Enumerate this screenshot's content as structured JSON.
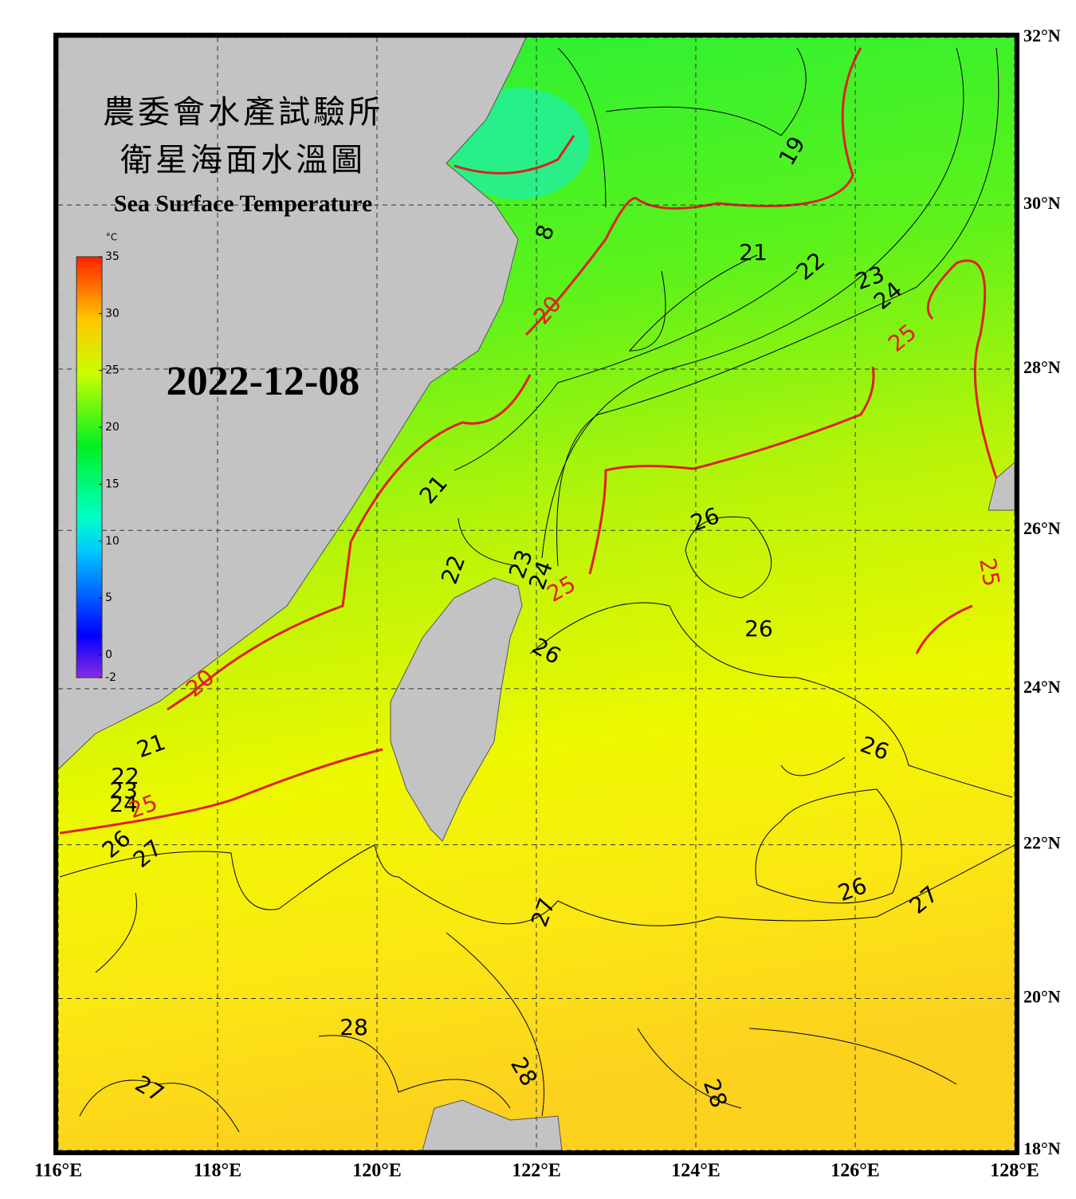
{
  "map": {
    "title_zh": [
      "農委會水產試驗所",
      "衛星海面水溫圖"
    ],
    "title_en": "Sea Surface Temperature",
    "date": "2022-12-08",
    "colorbar": {
      "unit": "°C",
      "range": [
        -2,
        35
      ],
      "ticks": [
        35,
        30,
        25,
        20,
        15,
        10,
        5,
        0,
        -2
      ]
    },
    "lon_range": [
      116,
      128
    ],
    "lat_range": [
      18,
      32
    ],
    "lon_ticks": [
      {
        "value": 116,
        "label": "116°E"
      },
      {
        "value": 118,
        "label": "118°E"
      },
      {
        "value": 120,
        "label": "120°E"
      },
      {
        "value": 122,
        "label": "122°E"
      },
      {
        "value": 124,
        "label": "124°E"
      },
      {
        "value": 126,
        "label": "126°E"
      },
      {
        "value": 128,
        "label": "128°E"
      }
    ],
    "lat_ticks": [
      {
        "value": 18,
        "label": "18°N"
      },
      {
        "value": 20,
        "label": "20°N"
      },
      {
        "value": 22,
        "label": "22°N"
      },
      {
        "value": 24,
        "label": "24°N"
      },
      {
        "value": 26,
        "label": "26°N"
      },
      {
        "value": 28,
        "label": "28°N"
      },
      {
        "value": 30,
        "label": "30°N"
      },
      {
        "value": 32,
        "label": "32°N"
      }
    ],
    "contour_labels": [
      19,
      21,
      22,
      23,
      24,
      25,
      20,
      8,
      21,
      22,
      23,
      24,
      25,
      26,
      25,
      26,
      26,
      20,
      21,
      26,
      22,
      23,
      24,
      25,
      26,
      27,
      27,
      26,
      27,
      28,
      28,
      27,
      28
    ]
  }
}
